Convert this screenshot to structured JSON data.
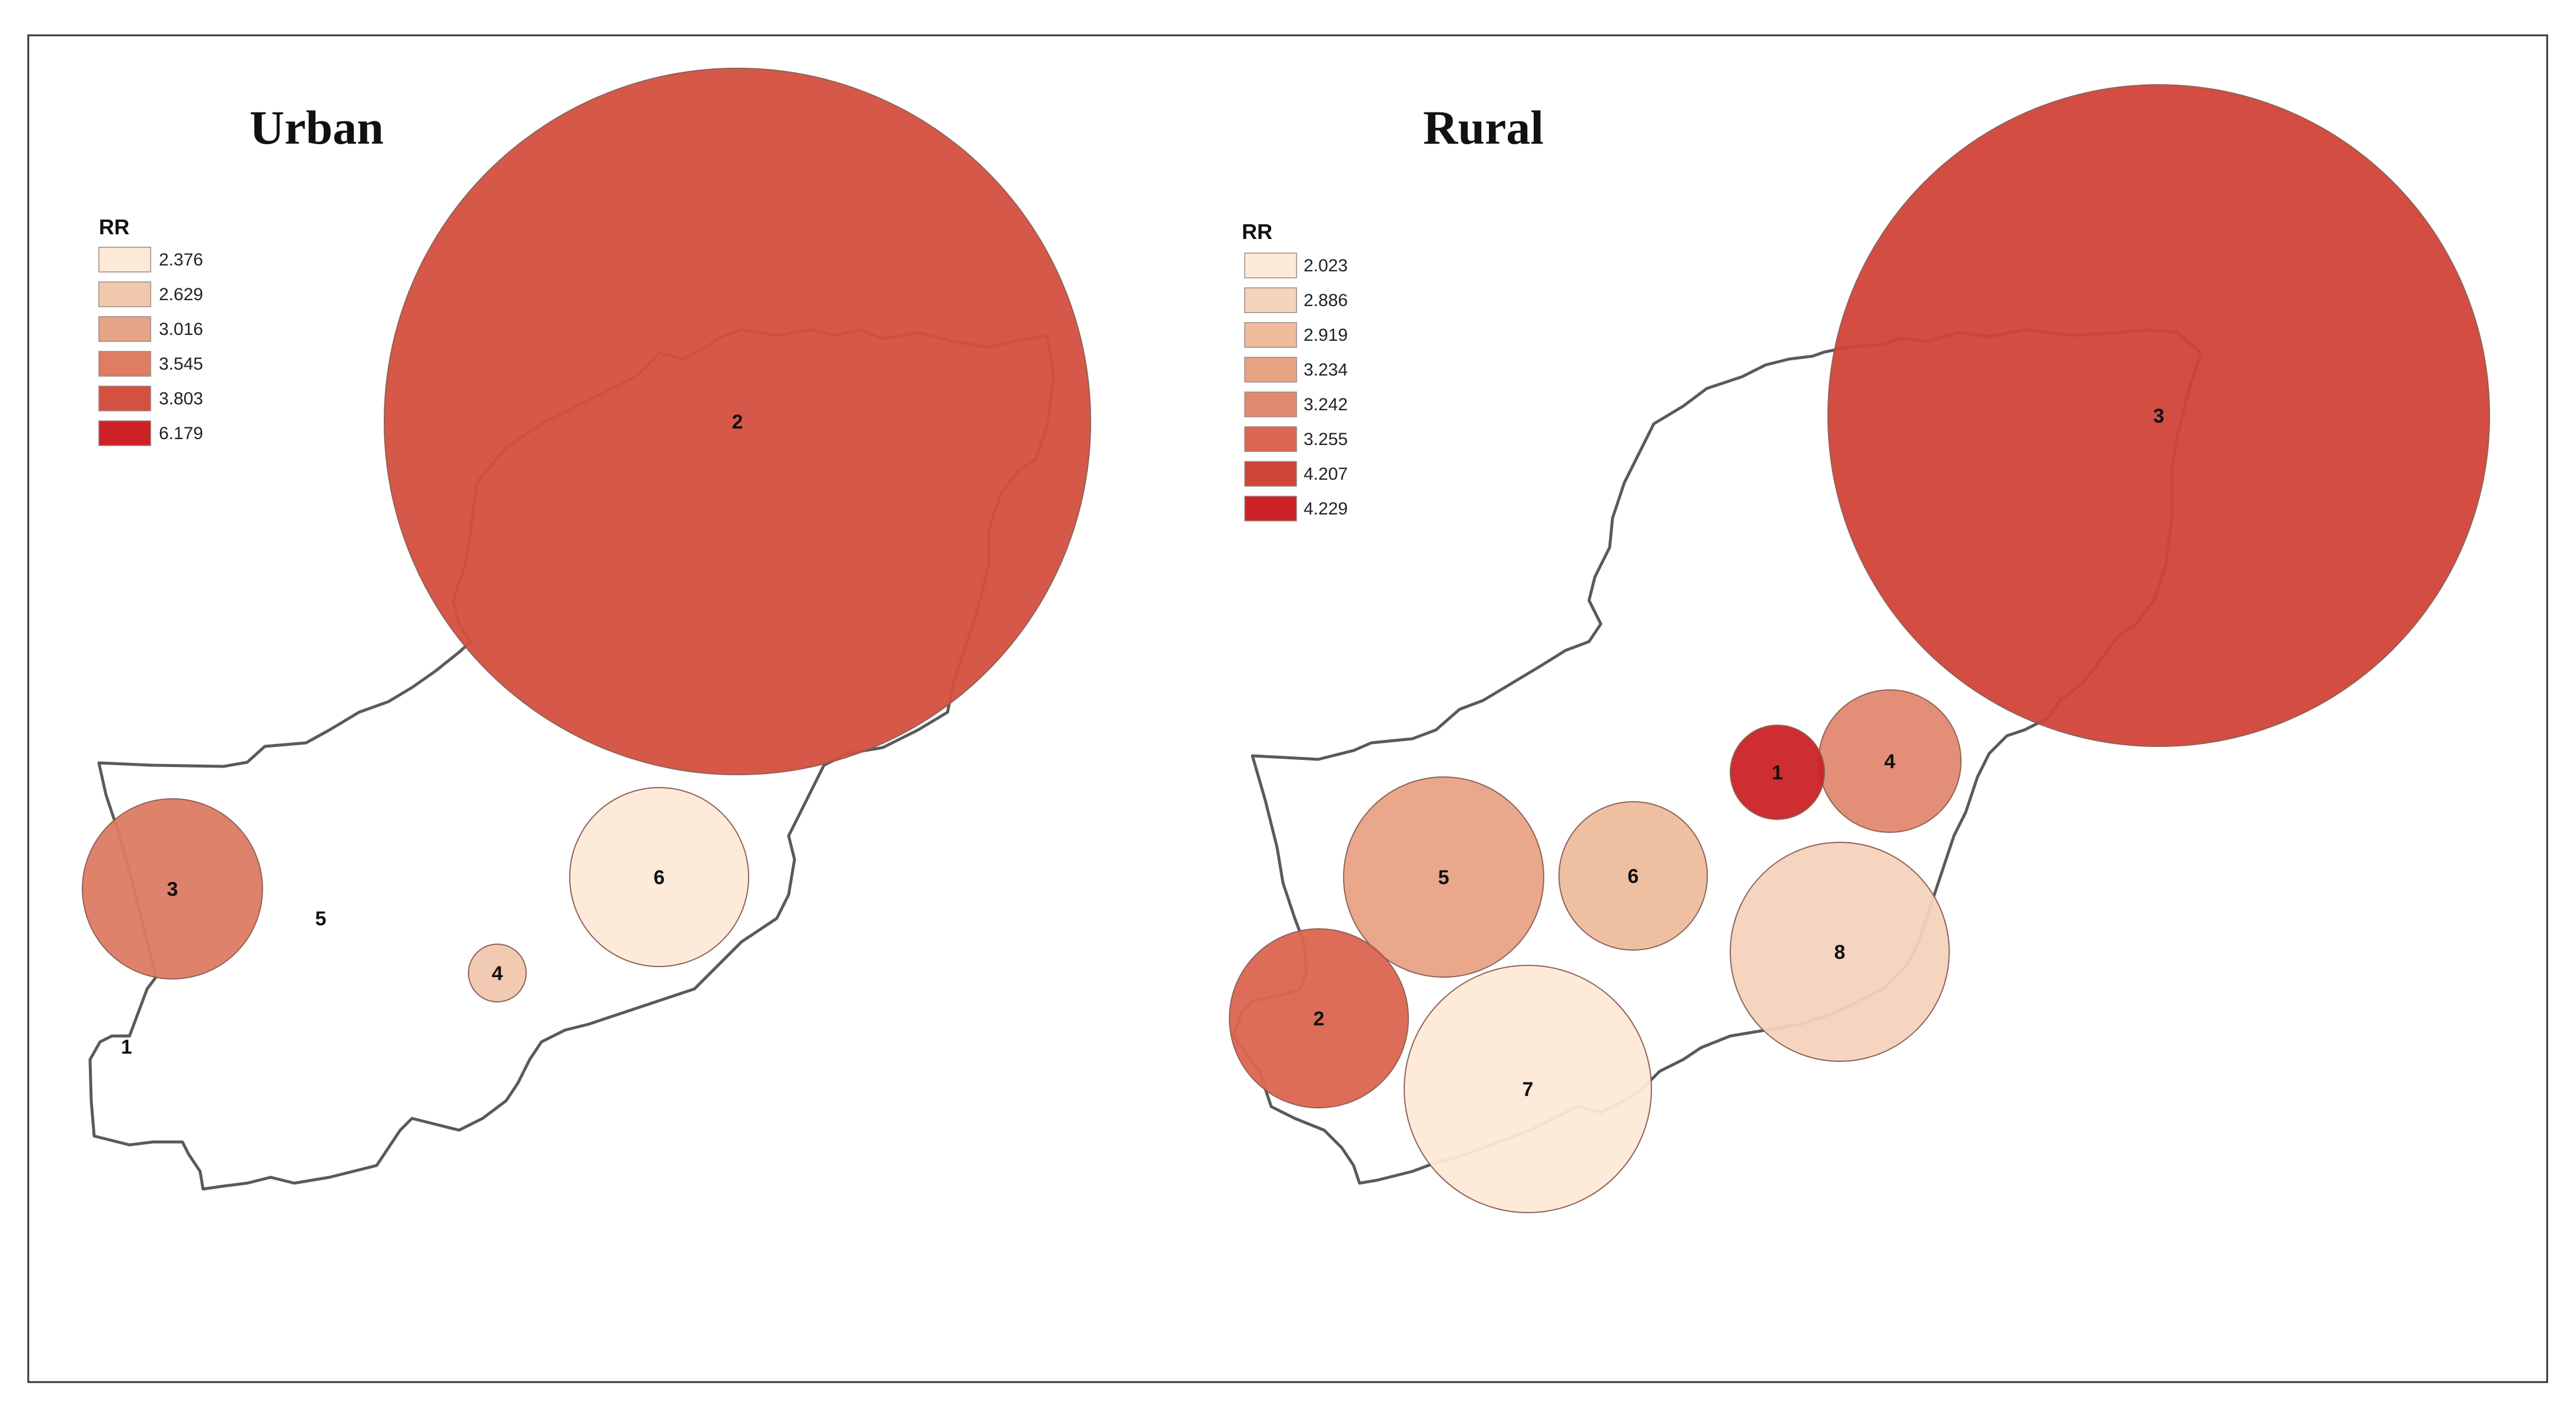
{
  "panels": [
    {
      "title": "Urban",
      "legend": {
        "title": "RR",
        "items": [
          {
            "label": "2.376",
            "color": "#fde9d8"
          },
          {
            "label": "2.629",
            "color": "#f2c8ad"
          },
          {
            "label": "3.016",
            "color": "#e7a385"
          },
          {
            "label": "3.545",
            "color": "#de7c64"
          },
          {
            "label": "3.803",
            "color": "#d45040"
          },
          {
            "label": "6.179",
            "color": "#cc2226"
          }
        ]
      },
      "regions": [
        {
          "id": "1",
          "rr": null,
          "color": null
        },
        {
          "id": "2",
          "rr": "3.803",
          "color": "#d45040"
        },
        {
          "id": "3",
          "rr": "3.545",
          "color": "#de7c64"
        },
        {
          "id": "4",
          "rr": "2.629",
          "color": "#f2c8ad"
        },
        {
          "id": "5",
          "rr": null,
          "color": null
        },
        {
          "id": "6",
          "rr": "2.376",
          "color": "#fde9d8"
        }
      ]
    },
    {
      "title": "Rural",
      "legend": {
        "title": "RR",
        "items": [
          {
            "label": "2.023",
            "color": "#fde9d8"
          },
          {
            "label": "2.886",
            "color": "#f5d3bc"
          },
          {
            "label": "2.919",
            "color": "#efbc9c"
          },
          {
            "label": "3.234",
            "color": "#e8a385"
          },
          {
            "label": "3.242",
            "color": "#e28a70"
          },
          {
            "label": "3.255",
            "color": "#dc6650"
          },
          {
            "label": "4.207",
            "color": "#d14438"
          },
          {
            "label": "4.229",
            "color": "#cc2226"
          }
        ]
      },
      "regions": [
        {
          "id": "1",
          "rr": "4.229",
          "color": "#cc2226"
        },
        {
          "id": "2",
          "rr": "3.255",
          "color": "#dc6650"
        },
        {
          "id": "3",
          "rr": "4.207",
          "color": "#d14438"
        },
        {
          "id": "4",
          "rr": "3.242",
          "color": "#e28a70"
        },
        {
          "id": "5",
          "rr": "3.234",
          "color": "#e8a385"
        },
        {
          "id": "6",
          "rr": "2.919",
          "color": "#efbc9c"
        },
        {
          "id": "7",
          "rr": "2.023",
          "color": "#fde9d8"
        },
        {
          "id": "8",
          "rr": "2.886",
          "color": "#f5d3bc"
        }
      ]
    }
  ]
}
